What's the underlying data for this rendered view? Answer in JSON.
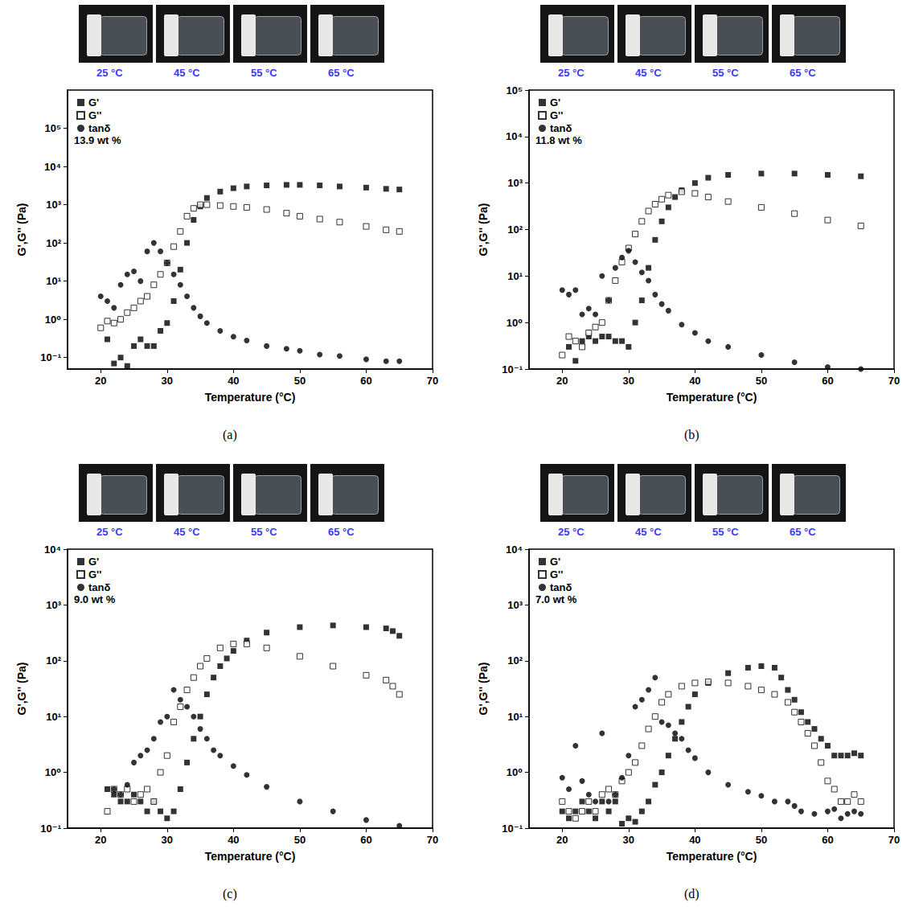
{
  "chart_data": [
    {
      "type": "scatter",
      "panel": "(a)",
      "photos": [
        "25 °C",
        "45 °C",
        "55 °C",
        "65 °C"
      ],
      "annotations": [
        "13.9 wt %"
      ],
      "x_label": "Temperature (°C)",
      "y_label": "G',G'' (Pa)",
      "xlim": [
        15,
        70
      ],
      "xticks": [
        20,
        30,
        40,
        50,
        60,
        70
      ],
      "ylim": [
        0.05,
        1000000
      ],
      "yticks": [
        {
          "value": 0.1,
          "label": "10⁻¹"
        },
        {
          "value": 1,
          "label": "10⁰"
        },
        {
          "value": 10,
          "label": "10¹"
        },
        {
          "value": 100,
          "label": "10²"
        },
        {
          "value": 1000,
          "label": "10³"
        },
        {
          "value": 10000,
          "label": "10⁴"
        },
        {
          "value": 100000,
          "label": "10⁵"
        }
      ],
      "log": "y",
      "grid": false,
      "legend": "top-left",
      "series": [
        {
          "name": "G'",
          "color": "#000000",
          "marker": "square",
          "x": [
            21,
            22,
            23,
            24,
            25,
            26,
            27,
            28,
            29,
            30,
            31,
            32,
            33,
            34,
            35,
            36,
            38,
            40,
            42,
            45,
            48,
            50,
            53,
            56,
            60,
            63,
            65
          ],
          "values": [
            0.3,
            0.07,
            0.1,
            0.06,
            0.2,
            0.3,
            0.2,
            0.2,
            0.5,
            0.8,
            3,
            20,
            100,
            400,
            900,
            1500,
            2200,
            2700,
            3000,
            3200,
            3300,
            3300,
            3200,
            3000,
            2800,
            2600,
            2500
          ]
        },
        {
          "name": "G''",
          "color": "#000000",
          "marker": "open_square",
          "x": [
            20,
            21,
            22,
            23,
            24,
            25,
            26,
            27,
            28,
            29,
            30,
            31,
            32,
            33,
            34,
            35,
            36,
            38,
            40,
            42,
            45,
            48,
            50,
            53,
            56,
            60,
            63,
            65
          ],
          "values": [
            0.6,
            0.9,
            0.8,
            1,
            1.5,
            2,
            3,
            4,
            8,
            15,
            30,
            80,
            200,
            500,
            800,
            1000,
            1000,
            950,
            900,
            850,
            750,
            600,
            500,
            420,
            350,
            270,
            220,
            200
          ]
        },
        {
          "name": "tanδ",
          "color": "#000000",
          "marker": "circle",
          "x": [
            20,
            21,
            22,
            23,
            24,
            25,
            26,
            27,
            28,
            29,
            30,
            31,
            32,
            33,
            34,
            35,
            36,
            38,
            40,
            42,
            45,
            48,
            50,
            53,
            56,
            60,
            63,
            65
          ],
          "values": [
            4,
            3,
            2,
            8,
            15,
            18,
            10,
            60,
            100,
            60,
            30,
            15,
            8,
            4,
            2,
            1.2,
            0.8,
            0.5,
            0.35,
            0.28,
            0.2,
            0.17,
            0.15,
            0.12,
            0.11,
            0.09,
            0.08,
            0.08
          ]
        }
      ]
    },
    {
      "type": "scatter",
      "panel": "(b)",
      "photos": [
        "25 °C",
        "45 °C",
        "55 °C",
        "65 °C"
      ],
      "annotations": [
        "11.8 wt %"
      ],
      "x_label": "Temperature (°C)",
      "y_label": "G',G'' (Pa)",
      "xlim": [
        15,
        70
      ],
      "xticks": [
        20,
        30,
        40,
        50,
        60,
        70
      ],
      "ylim": [
        0.1,
        100000
      ],
      "yticks": [
        {
          "value": 0.1,
          "label": "10⁻¹"
        },
        {
          "value": 1,
          "label": "10⁰"
        },
        {
          "value": 10,
          "label": "10¹"
        },
        {
          "value": 100,
          "label": "10²"
        },
        {
          "value": 1000,
          "label": "10³"
        },
        {
          "value": 10000,
          "label": "10⁴"
        },
        {
          "value": 100000,
          "label": "10⁵"
        }
      ],
      "log": "y",
      "grid": false,
      "legend": "top-left",
      "series": [
        {
          "name": "G'",
          "color": "#000000",
          "marker": "square",
          "x": [
            21,
            22,
            23,
            24,
            25,
            26,
            27,
            28,
            29,
            30,
            31,
            32,
            33,
            34,
            35,
            36,
            37,
            38,
            40,
            42,
            45,
            50,
            55,
            60,
            65
          ],
          "values": [
            0.3,
            0.15,
            0.4,
            0.5,
            0.4,
            0.5,
            0.5,
            0.4,
            0.4,
            0.3,
            1,
            3,
            15,
            60,
            150,
            300,
            500,
            700,
            1000,
            1300,
            1500,
            1600,
            1600,
            1500,
            1400
          ]
        },
        {
          "name": "G''",
          "color": "#000000",
          "marker": "open_square",
          "x": [
            20,
            21,
            22,
            23,
            24,
            25,
            26,
            27,
            28,
            29,
            30,
            31,
            32,
            33,
            34,
            35,
            36,
            38,
            40,
            42,
            45,
            50,
            55,
            60,
            65
          ],
          "values": [
            0.2,
            0.5,
            0.4,
            0.3,
            0.6,
            0.8,
            1,
            3,
            8,
            20,
            40,
            80,
            150,
            250,
            350,
            450,
            550,
            650,
            600,
            500,
            400,
            300,
            220,
            160,
            120
          ]
        },
        {
          "name": "tanδ",
          "color": "#000000",
          "marker": "circle",
          "x": [
            20,
            21,
            22,
            23,
            24,
            25,
            26,
            27,
            28,
            29,
            30,
            31,
            32,
            33,
            34,
            35,
            36,
            38,
            40,
            42,
            45,
            50,
            55,
            60,
            65
          ],
          "values": [
            5,
            4,
            5,
            1.5,
            2,
            1.5,
            10,
            3,
            15,
            25,
            35,
            20,
            12,
            8,
            4,
            2.5,
            1.8,
            0.9,
            0.6,
            0.4,
            0.3,
            0.2,
            0.14,
            0.11,
            0.1
          ]
        }
      ]
    },
    {
      "type": "scatter",
      "panel": "(c)",
      "photos": [
        "25 °C",
        "45 °C",
        "55 °C",
        "65 °C"
      ],
      "annotations": [
        "9.0 wt %"
      ],
      "x_label": "Temperature (°C)",
      "y_label": "G',G'' (Pa)",
      "xlim": [
        15,
        70
      ],
      "xticks": [
        20,
        30,
        40,
        50,
        60,
        70
      ],
      "ylim": [
        0.1,
        10000
      ],
      "yticks": [
        {
          "value": 0.1,
          "label": "10⁻¹"
        },
        {
          "value": 1,
          "label": "10⁰"
        },
        {
          "value": 10,
          "label": "10¹"
        },
        {
          "value": 100,
          "label": "10²"
        },
        {
          "value": 1000,
          "label": "10³"
        },
        {
          "value": 10000,
          "label": "10⁴"
        }
      ],
      "log": "y",
      "grid": false,
      "legend": "top-left",
      "series": [
        {
          "name": "G'",
          "color": "#000000",
          "marker": "square",
          "x": [
            21,
            22,
            23,
            24,
            25,
            26,
            27,
            28,
            29,
            30,
            31,
            32,
            33,
            34,
            35,
            36,
            37,
            38,
            39,
            40,
            42,
            45,
            50,
            55,
            60,
            63,
            64,
            65
          ],
          "values": [
            0.5,
            0.4,
            0.3,
            0.3,
            0.4,
            0.3,
            0.2,
            0.3,
            0.2,
            0.15,
            0.2,
            0.5,
            1.5,
            4,
            10,
            25,
            50,
            80,
            110,
            150,
            230,
            320,
            400,
            430,
            400,
            380,
            340,
            280
          ]
        },
        {
          "name": "G''",
          "color": "#000000",
          "marker": "open_square",
          "x": [
            21,
            22,
            23,
            24,
            25,
            26,
            27,
            28,
            29,
            30,
            31,
            32,
            33,
            34,
            35,
            36,
            38,
            40,
            42,
            45,
            50,
            55,
            60,
            63,
            64,
            65
          ],
          "values": [
            0.2,
            0.5,
            0.4,
            0.5,
            0.3,
            0.4,
            0.5,
            0.3,
            1,
            2,
            8,
            15,
            30,
            50,
            80,
            110,
            170,
            200,
            200,
            170,
            120,
            80,
            55,
            45,
            35,
            25
          ]
        },
        {
          "name": "tanδ",
          "color": "#000000",
          "marker": "circle",
          "x": [
            22,
            23,
            24,
            25,
            26,
            27,
            28,
            29,
            30,
            31,
            32,
            33,
            34,
            35,
            36,
            37,
            38,
            40,
            42,
            45,
            50,
            55,
            60,
            65
          ],
          "values": [
            0.5,
            0.4,
            0.6,
            1.5,
            2,
            2.5,
            4,
            8,
            10,
            30,
            20,
            15,
            10,
            6,
            4,
            2.5,
            2,
            1.3,
            0.9,
            0.55,
            0.3,
            0.2,
            0.14,
            0.11
          ]
        }
      ]
    },
    {
      "type": "scatter",
      "panel": "(d)",
      "photos": [
        "25 °C",
        "45 °C",
        "55 °C",
        "65 °C"
      ],
      "annotations": [
        "7.0 wt %"
      ],
      "x_label": "Temperature (°C)",
      "y_label": "G',G'' (Pa)",
      "xlim": [
        15,
        70
      ],
      "xticks": [
        20,
        30,
        40,
        50,
        60,
        70
      ],
      "ylim": [
        0.1,
        10000
      ],
      "yticks": [
        {
          "value": 0.1,
          "label": "10⁻¹"
        },
        {
          "value": 1,
          "label": "10⁰"
        },
        {
          "value": 10,
          "label": "10¹"
        },
        {
          "value": 100,
          "label": "10²"
        },
        {
          "value": 1000,
          "label": "10³"
        },
        {
          "value": 10000,
          "label": "10⁴"
        }
      ],
      "log": "y",
      "grid": false,
      "legend": "top-left",
      "series": [
        {
          "name": "G'",
          "color": "#000000",
          "marker": "square",
          "x": [
            20,
            21,
            22,
            23,
            24,
            25,
            26,
            27,
            28,
            29,
            30,
            31,
            32,
            33,
            34,
            35,
            36,
            37,
            38,
            39,
            40,
            42,
            45,
            48,
            50,
            52,
            53,
            54,
            55,
            56,
            57,
            58,
            59,
            60,
            61,
            62,
            63,
            64,
            65
          ],
          "values": [
            0.2,
            0.15,
            0.2,
            0.3,
            0.2,
            0.15,
            0.3,
            0.2,
            0.3,
            0.12,
            0.15,
            0.13,
            0.2,
            0.3,
            0.6,
            1,
            2,
            4,
            8,
            15,
            25,
            40,
            60,
            75,
            80,
            75,
            50,
            30,
            20,
            12,
            8,
            6,
            4,
            3,
            2,
            2,
            2,
            2.2,
            2
          ]
        },
        {
          "name": "G''",
          "color": "#000000",
          "marker": "open_square",
          "x": [
            20,
            21,
            22,
            23,
            24,
            25,
            26,
            27,
            28,
            29,
            30,
            31,
            32,
            33,
            34,
            35,
            36,
            38,
            40,
            42,
            45,
            48,
            50,
            52,
            54,
            55,
            56,
            57,
            58,
            59,
            60,
            61,
            62,
            63,
            64,
            65
          ],
          "values": [
            0.3,
            0.2,
            0.15,
            0.2,
            0.3,
            0.2,
            0.4,
            0.5,
            0.4,
            0.7,
            1,
            1.5,
            3,
            6,
            10,
            18,
            25,
            35,
            40,
            42,
            40,
            35,
            30,
            25,
            18,
            12,
            8,
            5,
            3,
            1.5,
            0.7,
            0.5,
            0.3,
            0.3,
            0.4,
            0.3
          ]
        },
        {
          "name": "tanδ",
          "color": "#000000",
          "marker": "circle",
          "x": [
            20,
            21,
            22,
            23,
            24,
            25,
            26,
            27,
            28,
            29,
            30,
            31,
            32,
            33,
            34,
            35,
            36,
            37,
            38,
            39,
            40,
            42,
            45,
            48,
            50,
            52,
            54,
            55,
            56,
            58,
            60,
            61,
            62,
            63,
            64,
            65
          ],
          "values": [
            0.8,
            0.5,
            3,
            0.7,
            0.4,
            0.3,
            5,
            0.3,
            0.4,
            0.8,
            2,
            15,
            20,
            30,
            50,
            8,
            7,
            5,
            4,
            2.5,
            1.8,
            1,
            0.6,
            0.45,
            0.38,
            0.3,
            0.3,
            0.25,
            0.2,
            0.18,
            0.2,
            0.22,
            0.15,
            0.18,
            0.2,
            0.18
          ]
        }
      ]
    }
  ]
}
